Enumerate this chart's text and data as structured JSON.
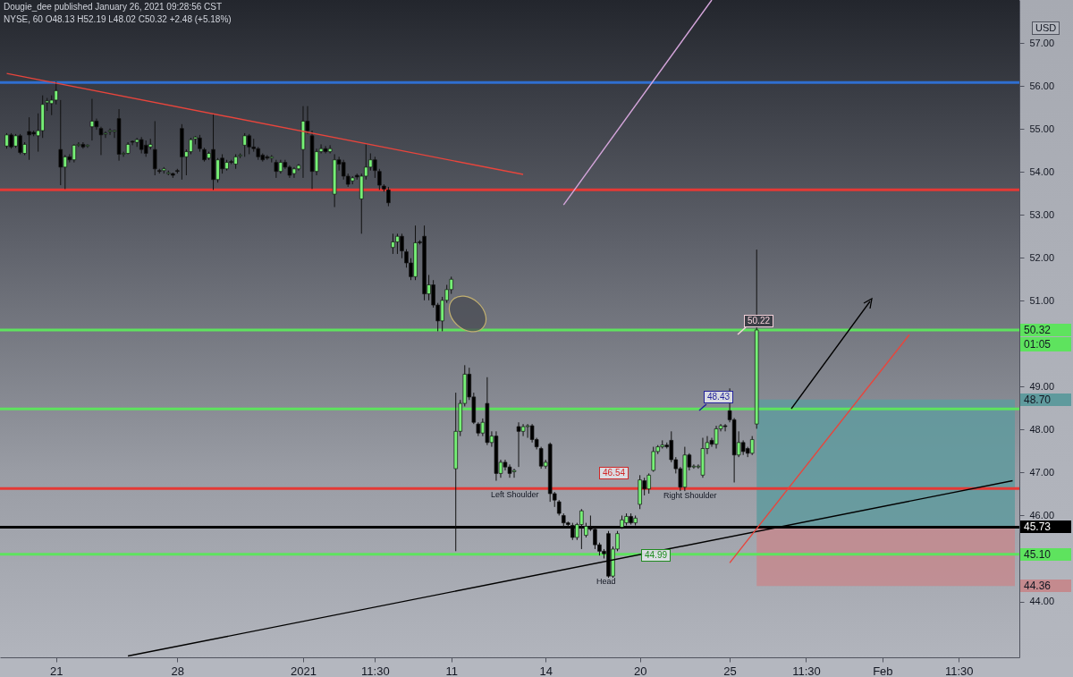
{
  "chart_data": {
    "type": "candlestick",
    "title": "Dougie_dee published January 26, 2021 09:28:56 CST",
    "subtitle": "NYSE, 60  O48.13 H52.19 L48.02 C50.32 +2.48 (+5.18%)",
    "ylabel": "USD",
    "categories": [
      null,
      null,
      null,
      null,
      null,
      null,
      null,
      null,
      null,
      null,
      null,
      "21",
      null,
      null,
      null,
      null,
      null,
      null,
      null,
      null,
      null,
      null,
      null,
      null,
      null,
      null,
      null,
      null,
      null,
      null,
      null,
      null,
      null,
      null,
      null,
      null,
      null,
      null,
      "28",
      null,
      null,
      null,
      null,
      null,
      null,
      null,
      null,
      null,
      null,
      null,
      null,
      null,
      null,
      null,
      null,
      null,
      null,
      null,
      null,
      null,
      null,
      null,
      null,
      null,
      null,
      null,
      "2021",
      null,
      null,
      null,
      null,
      null,
      null,
      null,
      null,
      null,
      null,
      null,
      null,
      null,
      null,
      null,
      "11:30",
      null,
      null,
      null,
      null,
      null,
      null,
      null,
      null,
      null,
      null,
      null,
      null,
      null,
      null,
      null,
      null,
      "11",
      null,
      null,
      null,
      null,
      null,
      null,
      null,
      null,
      null,
      null,
      null,
      null,
      null,
      null,
      null,
      null,
      null,
      null,
      null,
      null,
      "14",
      null,
      null,
      null,
      null,
      null,
      null,
      null,
      null,
      null,
      null,
      null,
      null,
      null,
      null,
      null,
      null,
      null,
      null,
      null,
      null,
      "20",
      null,
      null,
      null,
      null,
      null,
      null,
      null,
      null,
      null,
      null,
      null,
      null,
      null,
      null,
      null,
      null,
      null,
      null,
      null,
      "25",
      null,
      null,
      null,
      null,
      null,
      null,
      null,
      null,
      null,
      null,
      null,
      null,
      null,
      null,
      null,
      null,
      "11:30",
      null,
      null,
      null,
      null,
      null,
      null,
      null,
      null,
      null,
      null,
      null,
      null,
      null,
      null,
      null,
      null,
      "Feb",
      null,
      null,
      null,
      null,
      null,
      null,
      null,
      null,
      null,
      null,
      null,
      null,
      null,
      null,
      null,
      null,
      "11:30",
      null,
      null,
      null,
      null,
      null,
      null,
      null,
      null,
      null,
      null,
      null,
      null
    ],
    "ylim": [
      42.7,
      58.0
    ],
    "yticks": [
      {
        "value": 44,
        "label": "44.00"
      },
      {
        "value": 46,
        "label": "46.00"
      },
      {
        "value": 47,
        "label": "47.00"
      },
      {
        "value": 48,
        "label": "48.00"
      },
      {
        "value": 49,
        "label": "49.00"
      },
      {
        "value": 51,
        "label": "51.00"
      },
      {
        "value": 52,
        "label": "52.00"
      },
      {
        "value": 53,
        "label": "53.00"
      },
      {
        "value": 54,
        "label": "54.00"
      },
      {
        "value": 55,
        "label": "55.00"
      },
      {
        "value": 56,
        "label": "56.00"
      },
      {
        "value": 57,
        "label": "57.00"
      }
    ],
    "ohlc": [
      [
        54.6,
        54.9,
        54.54,
        54.86
      ],
      [
        54.86,
        54.9,
        54.54,
        54.58
      ],
      [
        54.6,
        54.88,
        54.56,
        54.84
      ],
      [
        54.84,
        54.88,
        54.41,
        54.45
      ],
      [
        54.43,
        54.69,
        54.39,
        54.64
      ],
      [
        54.94,
        55.27,
        54.28,
        54.86
      ],
      [
        54.92,
        54.96,
        54.83,
        54.88
      ],
      [
        54.84,
        55.36,
        54.47,
        54.96
      ],
      [
        54.96,
        55.78,
        54.79,
        55.57
      ],
      [
        55.61,
        55.72,
        55.42,
        55.65
      ],
      [
        55.59,
        55.78,
        55.32,
        55.67
      ],
      [
        55.67,
        56.1,
        55.57,
        55.89
      ],
      [
        54.52,
        55.67,
        53.69,
        54.11
      ],
      [
        54.11,
        54.39,
        53.6,
        54.35
      ],
      [
        54.35,
        54.41,
        54.22,
        54.28
      ],
      [
        54.28,
        54.64,
        54.22,
        54.62
      ],
      [
        54.62,
        54.69,
        54.58,
        54.64
      ],
      [
        54.64,
        54.69,
        54.54,
        54.58
      ],
      [
        54.6,
        54.64,
        54.56,
        54.62
      ],
      [
        55.05,
        55.7,
        54.73,
        55.18
      ],
      [
        55.18,
        55.24,
        54.98,
        55.05
      ],
      [
        55.01,
        55.05,
        54.39,
        54.86
      ],
      [
        54.88,
        54.94,
        54.79,
        54.9
      ],
      [
        54.94,
        55.01,
        54.86,
        54.96
      ],
      [
        54.94,
        54.98,
        54.79,
        54.96
      ],
      [
        55.24,
        55.46,
        54.26,
        54.41
      ],
      [
        54.41,
        54.47,
        54.35,
        54.43
      ],
      [
        54.43,
        54.69,
        54.41,
        54.64
      ],
      [
        54.71,
        54.73,
        54.62,
        54.69
      ],
      [
        54.69,
        54.79,
        54.58,
        54.75
      ],
      [
        54.75,
        54.81,
        54.43,
        54.52
      ],
      [
        54.62,
        54.73,
        54.35,
        54.43
      ],
      [
        54.58,
        54.77,
        54.52,
        54.64
      ],
      [
        54.52,
        55.18,
        53.92,
        54.07
      ],
      [
        54.03,
        54.07,
        53.96,
        54.01
      ],
      [
        54.03,
        54.11,
        53.96,
        54.07
      ],
      [
        53.96,
        54.03,
        53.92,
        53.98
      ],
      [
        53.96,
        53.98,
        53.86,
        53.92
      ],
      [
        54.03,
        54.07,
        53.96,
        54.01
      ],
      [
        55.01,
        55.11,
        53.82,
        54.35
      ],
      [
        54.35,
        54.52,
        53.92,
        54.47
      ],
      [
        54.47,
        54.79,
        54.41,
        54.75
      ],
      [
        54.77,
        54.83,
        54.64,
        54.81
      ],
      [
        54.79,
        54.86,
        54.47,
        54.54
      ],
      [
        54.52,
        54.56,
        54.24,
        54.28
      ],
      [
        54.32,
        54.47,
        54.28,
        54.43
      ],
      [
        54.52,
        55.36,
        53.58,
        53.82
      ],
      [
        53.82,
        54.32,
        53.75,
        54.28
      ],
      [
        54.32,
        54.41,
        53.96,
        54.07
      ],
      [
        54.07,
        54.28,
        54.03,
        54.22
      ],
      [
        54.24,
        54.28,
        54.18,
        54.22
      ],
      [
        54.18,
        54.41,
        54.07,
        54.35
      ],
      [
        54.37,
        54.43,
        54.32,
        54.39
      ],
      [
        54.62,
        54.9,
        54.35,
        54.84
      ],
      [
        54.84,
        54.88,
        54.41,
        54.58
      ],
      [
        54.58,
        54.77,
        54.47,
        54.54
      ],
      [
        54.54,
        54.58,
        54.28,
        54.35
      ],
      [
        54.39,
        54.43,
        54.24,
        54.28
      ],
      [
        54.35,
        54.39,
        54.28,
        54.32
      ],
      [
        54.32,
        54.39,
        54.22,
        54.35
      ],
      [
        54.22,
        54.28,
        53.86,
        54.01
      ],
      [
        54.01,
        54.28,
        53.96,
        54.22
      ],
      [
        54.22,
        54.28,
        54.07,
        54.11
      ],
      [
        54.11,
        54.15,
        53.86,
        53.92
      ],
      [
        53.96,
        54.11,
        53.86,
        54.07
      ],
      [
        54.07,
        54.18,
        54.03,
        54.15
      ],
      [
        54.52,
        55.53,
        53.86,
        55.18
      ],
      [
        55.18,
        55.53,
        54.88,
        54.96
      ],
      [
        54.84,
        54.96,
        53.6,
        54.01
      ],
      [
        54.01,
        54.54,
        53.92,
        54.47
      ],
      [
        54.47,
        54.64,
        54.43,
        54.54
      ],
      [
        54.54,
        54.6,
        54.43,
        54.47
      ],
      [
        54.47,
        54.62,
        54.43,
        54.54
      ],
      [
        53.48,
        54.41,
        53.18,
        54.28
      ],
      [
        54.28,
        54.35,
        54.03,
        54.18
      ],
      [
        54.22,
        54.28,
        53.82,
        53.9
      ],
      [
        53.9,
        53.96,
        53.65,
        53.71
      ],
      [
        53.79,
        53.9,
        53.71,
        53.86
      ],
      [
        53.92,
        53.96,
        53.82,
        53.88
      ],
      [
        53.37,
        53.96,
        52.56,
        53.9
      ],
      [
        53.9,
        54.64,
        53.82,
        54.11
      ],
      [
        54.11,
        54.43,
        54.03,
        54.28
      ],
      [
        54.28,
        54.35,
        53.86,
        54.03
      ],
      [
        54.01,
        54.07,
        53.58,
        53.69
      ],
      [
        53.67,
        53.71,
        53.54,
        53.6
      ],
      [
        53.58,
        53.65,
        53.2,
        53.28
      ],
      [
        52.24,
        52.56,
        52.09,
        52.37
      ],
      [
        52.37,
        52.56,
        52.09,
        52.5
      ],
      [
        52.5,
        52.56,
        51.99,
        52.16
      ],
      [
        52.14,
        52.2,
        51.77,
        51.88
      ],
      [
        51.88,
        51.99,
        51.48,
        51.56
      ],
      [
        51.56,
        52.75,
        51.48,
        52.35
      ],
      [
        52.37,
        52.41,
        52.31,
        52.35
      ],
      [
        52.5,
        52.75,
        51.01,
        51.16
      ],
      [
        51.16,
        51.6,
        51.01,
        51.37
      ],
      [
        51.37,
        51.48,
        50.84,
        50.9
      ],
      [
        50.9,
        50.95,
        50.29,
        50.53
      ],
      [
        50.53,
        51.09,
        50.29,
        51.01
      ],
      [
        51.01,
        51.37,
        50.95,
        51.26
      ],
      [
        51.26,
        51.56,
        51.16,
        51.5
      ],
      [
        47.09,
        48.86,
        45.17,
        47.96
      ],
      [
        47.96,
        48.69,
        47.85,
        48.61
      ],
      [
        48.61,
        49.5,
        48.54,
        49.29
      ],
      [
        49.29,
        49.44,
        48.69,
        48.76
      ],
      [
        48.76,
        48.86,
        48.13,
        48.17
      ],
      [
        48.13,
        48.17,
        47.85,
        47.92
      ],
      [
        47.92,
        48.26,
        47.85,
        48.17
      ],
      [
        48.61,
        49.22,
        47.64,
        47.7
      ],
      [
        47.7,
        47.96,
        47.6,
        47.85
      ],
      [
        47.85,
        47.96,
        46.81,
        46.98
      ],
      [
        46.98,
        47.3,
        46.88,
        47.24
      ],
      [
        47.24,
        47.3,
        47.05,
        47.13
      ],
      [
        47.13,
        47.19,
        46.88,
        46.98
      ],
      [
        47.02,
        47.09,
        46.88,
        47.05
      ],
      [
        48.07,
        48.17,
        47.13,
        47.96
      ],
      [
        47.96,
        48.13,
        47.85,
        48.07
      ],
      [
        48.07,
        48.13,
        47.81,
        48.09
      ],
      [
        48.09,
        48.13,
        47.7,
        47.77
      ],
      [
        47.77,
        47.81,
        47.54,
        47.6
      ],
      [
        47.56,
        47.6,
        47.09,
        47.15
      ],
      [
        47.15,
        47.3,
        47.09,
        47.24
      ],
      [
        47.66,
        47.7,
        46.32,
        46.51
      ],
      [
        46.51,
        46.55,
        46.2,
        46.36
      ],
      [
        46.32,
        46.36,
        46.0,
        46.05
      ],
      [
        46.0,
        46.05,
        45.73,
        45.83
      ],
      [
        45.83,
        45.86,
        45.73,
        45.79
      ],
      [
        45.77,
        45.83,
        45.43,
        45.49
      ],
      [
        45.49,
        45.83,
        45.43,
        45.79
      ],
      [
        45.79,
        46.15,
        45.22,
        46.11
      ],
      [
        45.54,
        45.83,
        45.49,
        45.75
      ],
      [
        45.73,
        46.0,
        45.64,
        45.68
      ],
      [
        45.68,
        45.73,
        45.22,
        45.32
      ],
      [
        45.32,
        45.37,
        45.07,
        45.17
      ],
      [
        45.17,
        45.22,
        45.0,
        45.11
      ],
      [
        45.58,
        45.64,
        44.55,
        44.59
      ],
      [
        44.59,
        45.28,
        44.55,
        45.22
      ],
      [
        45.22,
        45.64,
        45.17,
        45.58
      ],
      [
        45.73,
        46.0,
        45.69,
        45.9
      ],
      [
        45.83,
        46.05,
        45.77,
        45.98
      ],
      [
        45.98,
        46.05,
        45.79,
        45.83
      ],
      [
        45.83,
        46.0,
        45.77,
        45.94
      ],
      [
        46.26,
        46.94,
        46.15,
        46.83
      ],
      [
        46.81,
        46.88,
        46.47,
        46.62
      ],
      [
        46.62,
        46.98,
        46.51,
        46.94
      ],
      [
        47.05,
        47.6,
        47.02,
        47.49
      ],
      [
        47.49,
        47.64,
        47.43,
        47.6
      ],
      [
        47.6,
        47.75,
        47.56,
        47.64
      ],
      [
        47.64,
        47.7,
        47.56,
        47.6
      ],
      [
        47.75,
        47.96,
        47.24,
        47.3
      ],
      [
        47.3,
        47.36,
        46.98,
        47.09
      ],
      [
        47.09,
        47.13,
        46.57,
        46.66
      ],
      [
        46.66,
        47.6,
        46.57,
        47.41
      ],
      [
        47.41,
        47.45,
        47.05,
        47.13
      ],
      [
        47.13,
        47.19,
        47.09,
        47.15
      ],
      [
        47.13,
        47.19,
        47.09,
        47.15
      ],
      [
        46.94,
        47.81,
        46.88,
        47.56
      ],
      [
        47.56,
        47.85,
        47.43,
        47.7
      ],
      [
        47.75,
        47.81,
        47.6,
        47.66
      ],
      [
        47.66,
        48.09,
        47.56,
        48.02
      ],
      [
        48.02,
        48.13,
        47.96,
        48.09
      ],
      [
        48.09,
        48.13,
        47.96,
        48.07
      ],
      [
        48.44,
        48.96,
        48.17,
        48.23
      ],
      [
        48.23,
        48.27,
        46.77,
        47.41
      ],
      [
        47.41,
        47.96,
        47.36,
        47.7
      ],
      [
        47.7,
        47.75,
        47.41,
        47.49
      ],
      [
        47.56,
        47.6,
        47.36,
        47.45
      ],
      [
        47.45,
        47.85,
        47.41,
        47.77
      ],
      [
        48.13,
        52.19,
        48.02,
        50.32
      ],
      null,
      null,
      null,
      null,
      null,
      null,
      null,
      null,
      null,
      null,
      null,
      null,
      null,
      null,
      null,
      null,
      null,
      null,
      null,
      null,
      null,
      null,
      null,
      null,
      null,
      null,
      null,
      null,
      null,
      null,
      null,
      null,
      null,
      null,
      null,
      null,
      null,
      null,
      null,
      null,
      null,
      null,
      null,
      null,
      null,
      null,
      null,
      null,
      null,
      null,
      null,
      null,
      null,
      null,
      null,
      null,
      null
    ],
    "colors": [
      "#76f076",
      "#000000",
      "#76f076",
      "#000000",
      "#76f076",
      "#000000",
      "#000000",
      "#76f076",
      "#76f076",
      "#76f076",
      "#76f076",
      "#76f076",
      "#000000",
      "#76f076",
      "#000000",
      "#76f076",
      "#76f076",
      "#000000",
      "#76f076",
      "#76f076",
      "#000000",
      "#000000",
      "#76f076",
      "#76f076",
      "#76f076",
      "#000000",
      "#76f076",
      "#76f076",
      "#000000",
      "#76f076",
      "#000000",
      "#000000",
      "#76f076",
      "#000000",
      "#000000",
      "#76f076",
      "#76f076",
      "#000000",
      "#000000",
      "#000000",
      "#76f076",
      "#76f076",
      "#76f076",
      "#000000",
      "#000000",
      "#76f076",
      "#000000",
      "#76f076",
      "#000000",
      "#76f076",
      "#000000",
      "#76f076",
      "#76f076",
      "#76f076",
      "#000000",
      "#000000",
      "#000000",
      "#000000",
      "#000000",
      "#76f076",
      "#000000",
      "#76f076",
      "#000000",
      "#000000",
      "#76f076",
      "#76f076",
      "#76f076",
      "#000000",
      "#000000",
      "#76f076",
      "#76f076",
      "#000000",
      "#76f076",
      "#76f076",
      "#000000",
      "#000000",
      "#000000",
      "#76f076",
      "#000000",
      "#76f076",
      "#76f076",
      "#76f076",
      "#000000",
      "#000000",
      "#000000",
      "#000000",
      "#76f076",
      "#76f076",
      "#000000",
      "#000000",
      "#000000",
      "#76f076",
      "#000000",
      "#000000",
      "#76f076",
      "#000000",
      "#000000",
      "#76f076",
      "#76f076",
      "#76f076",
      "#76f076",
      "#76f076",
      "#76f076",
      "#000000",
      "#000000",
      "#000000",
      "#76f076",
      "#000000",
      "#76f076",
      "#000000",
      "#76f076",
      "#000000",
      "#000000",
      "#76f076",
      "#000000",
      "#76f076",
      "#76f076",
      "#000000",
      "#000000",
      "#000000",
      "#76f076",
      "#000000",
      "#000000",
      "#000000",
      "#000000",
      "#000000",
      "#000000",
      "#76f076",
      "#76f076",
      "#76f076",
      "#000000",
      "#000000",
      "#000000",
      "#000000",
      "#000000",
      "#76f076",
      "#76f076",
      "#76f076",
      "#76f076",
      "#000000",
      "#76f076",
      "#76f076",
      "#000000",
      "#76f076",
      "#76f076",
      "#76f076",
      "#76f076",
      "#000000",
      "#000000",
      "#000000",
      "#000000",
      "#76f076",
      "#000000",
      "#76f076",
      "#76f076",
      "#76f076",
      "#76f076",
      "#000000",
      "#76f076",
      "#76f076",
      "#000000",
      "#000000",
      "#000000",
      "#76f076",
      "#000000",
      "#000000",
      "#76f076",
      "#76f076",
      null,
      null,
      null,
      null,
      null,
      null,
      null,
      null,
      null,
      null,
      null,
      null,
      null,
      null,
      null,
      null,
      null,
      null,
      null,
      null,
      null,
      null,
      null,
      null,
      null,
      null,
      null,
      null,
      null,
      null,
      null,
      null,
      null,
      null,
      null,
      null,
      null,
      null,
      null,
      null,
      null,
      null,
      null,
      null,
      null,
      null,
      null,
      null,
      null,
      null,
      null,
      null,
      null,
      null,
      null,
      null,
      null
    ],
    "series": [
      {
        "type": "line",
        "color": "#e8453c",
        "values": [
          56.29,
          null,
          null,
          null,
          null,
          null,
          null,
          null,
          null,
          null,
          null,
          null,
          null,
          null,
          null,
          null,
          null,
          null,
          null,
          null,
          null,
          null,
          null,
          null,
          null,
          null,
          null,
          null,
          null,
          null,
          null,
          null,
          null,
          null,
          null,
          null,
          null,
          null,
          null,
          null,
          null,
          null,
          null,
          null,
          null,
          null,
          null,
          null,
          null,
          null,
          null,
          null,
          null,
          null,
          null,
          null,
          null,
          null,
          null,
          null,
          null,
          null,
          null,
          null,
          null,
          null,
          null,
          null,
          null,
          null,
          null,
          null,
          null,
          null,
          null,
          null,
          null,
          null,
          null,
          null,
          null,
          null,
          null,
          null,
          null,
          null,
          null,
          null,
          null,
          null,
          null,
          null,
          null,
          null,
          null,
          null,
          null,
          null,
          null,
          null,
          null,
          null,
          null,
          null,
          null,
          null,
          null,
          null,
          null,
          null,
          null,
          null,
          null,
          null,
          null,
          53.94,
          null,
          null,
          null,
          null,
          null,
          null,
          null,
          null,
          null,
          null,
          null,
          null,
          null,
          null,
          null,
          null,
          null,
          null,
          null,
          null,
          null,
          null,
          null,
          null,
          null,
          null,
          null,
          null,
          null,
          null,
          null,
          null,
          null,
          null,
          null,
          null,
          null,
          null,
          null,
          null,
          null,
          null,
          null,
          null,
          null,
          null,
          null,
          null,
          null,
          null,
          null,
          null,
          null,
          null,
          null,
          null,
          null,
          null,
          null,
          null,
          null,
          null,
          null,
          null,
          null,
          null,
          null,
          null,
          null,
          null,
          null,
          null,
          null,
          null,
          null,
          null,
          null,
          null,
          null,
          null,
          null,
          null,
          null,
          null,
          null,
          null,
          null,
          null,
          null,
          null,
          null,
          null,
          null,
          null,
          null,
          null,
          null,
          null,
          null,
          null,
          null,
          null,
          null,
          null,
          null,
          null,
          null,
          null,
          null
        ]
      },
      {
        "type": "line",
        "color": "#d6a6dc",
        "values": [
          null,
          null,
          null,
          null,
          null,
          null,
          null,
          null,
          null,
          null,
          null,
          null,
          null,
          null,
          null,
          null,
          null,
          null,
          null,
          null,
          null,
          null,
          null,
          null,
          null,
          null,
          null,
          null,
          null,
          null,
          null,
          null,
          null,
          null,
          null,
          null,
          null,
          null,
          null,
          null,
          null,
          null,
          null,
          null,
          null,
          null,
          null,
          null,
          null,
          null,
          null,
          null,
          null,
          null,
          null,
          null,
          null,
          null,
          null,
          null,
          null,
          null,
          null,
          null,
          null,
          null,
          null,
          null,
          null,
          null,
          null,
          null,
          null,
          null,
          null,
          null,
          null,
          null,
          null,
          null,
          null,
          null,
          null,
          null,
          null,
          null,
          null,
          null,
          null,
          null,
          null,
          null,
          null,
          null,
          null,
          null,
          null,
          null,
          null,
          null,
          null,
          null,
          null,
          null,
          null,
          null,
          null,
          null,
          null,
          null,
          null,
          null,
          null,
          null,
          null,
          null,
          null,
          null,
          null,
          null,
          null,
          null,
          null,
          null,
          53.23,
          null,
          null,
          null,
          null,
          null,
          null,
          null,
          null,
          null,
          null,
          null,
          null,
          null,
          null,
          null,
          null,
          null,
          null,
          null,
          null,
          null,
          null,
          null,
          null,
          null,
          null,
          null,
          null,
          null,
          null,
          null,
          null,
          58.0,
          null,
          null,
          null,
          null,
          null,
          null,
          null,
          null,
          null,
          null,
          null,
          null,
          null,
          null,
          null,
          null,
          null,
          null,
          null,
          null,
          null,
          null,
          null,
          null,
          null,
          null,
          null,
          null,
          null,
          null,
          null,
          null,
          null,
          null,
          null,
          null,
          null,
          null,
          null,
          null,
          null,
          null,
          null,
          null,
          null,
          null,
          null,
          null,
          null,
          null,
          null,
          null,
          null,
          null,
          null,
          null,
          null,
          null,
          null,
          null,
          null,
          null,
          null,
          null,
          null,
          null,
          null
        ]
      },
      {
        "type": "line",
        "color": "#000000",
        "values": [
          null,
          null,
          null,
          null,
          null,
          null,
          null,
          null,
          null,
          null,
          null,
          null,
          null,
          null,
          null,
          null,
          null,
          null,
          null,
          null,
          null,
          null,
          null,
          null,
          null,
          null,
          null,
          42.73,
          null,
          null,
          null,
          null,
          null,
          null,
          null,
          null,
          null,
          null,
          null,
          null,
          null,
          null,
          null,
          null,
          null,
          null,
          null,
          null,
          null,
          null,
          null,
          null,
          null,
          null,
          null,
          null,
          null,
          null,
          null,
          null,
          null,
          null,
          null,
          null,
          null,
          null,
          null,
          null,
          null,
          null,
          null,
          null,
          null,
          null,
          null,
          null,
          null,
          null,
          null,
          null,
          null,
          null,
          null,
          null,
          null,
          null,
          null,
          null,
          null,
          null,
          null,
          null,
          null,
          null,
          null,
          null,
          null,
          null,
          null,
          null,
          null,
          null,
          null,
          null,
          null,
          null,
          null,
          null,
          null,
          null,
          null,
          null,
          null,
          null,
          null,
          null,
          null,
          null,
          null,
          null,
          null,
          null,
          null,
          null,
          null,
          null,
          null,
          null,
          null,
          null,
          null,
          null,
          null,
          null,
          null,
          null,
          null,
          null,
          null,
          null,
          null,
          null,
          null,
          null,
          null,
          null,
          null,
          null,
          null,
          null,
          null,
          null,
          null,
          null,
          null,
          null,
          null,
          null,
          null,
          null,
          null,
          null,
          null,
          null,
          null,
          null,
          null,
          null,
          null,
          null,
          null,
          null,
          null,
          null,
          null,
          null,
          null,
          null,
          null,
          null,
          null,
          null,
          null,
          null,
          null,
          null,
          null,
          null,
          null,
          null,
          null,
          null,
          null,
          null,
          null,
          null,
          null,
          null,
          null,
          null,
          null,
          null,
          null,
          null,
          null,
          null,
          null,
          null,
          null,
          null,
          null,
          null,
          null,
          null,
          null,
          null,
          null,
          null,
          null,
          null,
          null,
          null,
          null,
          null,
          46.81
        ]
      },
      {
        "type": "line",
        "color": "#e8453c",
        "values": [
          null,
          null,
          null,
          null,
          null,
          null,
          null,
          null,
          null,
          null,
          null,
          null,
          null,
          null,
          null,
          null,
          null,
          null,
          null,
          null,
          null,
          null,
          null,
          null,
          null,
          null,
          null,
          null,
          null,
          null,
          null,
          null,
          null,
          null,
          null,
          null,
          null,
          null,
          null,
          null,
          null,
          null,
          null,
          null,
          null,
          null,
          null,
          null,
          null,
          null,
          null,
          null,
          null,
          null,
          null,
          null,
          null,
          null,
          null,
          null,
          null,
          null,
          null,
          null,
          null,
          null,
          null,
          null,
          null,
          null,
          null,
          null,
          null,
          null,
          null,
          null,
          null,
          null,
          null,
          null,
          null,
          null,
          null,
          null,
          null,
          null,
          null,
          null,
          null,
          null,
          null,
          null,
          null,
          null,
          null,
          null,
          null,
          null,
          null,
          null,
          null,
          null,
          null,
          null,
          null,
          null,
          null,
          null,
          null,
          null,
          null,
          null,
          null,
          null,
          null,
          null,
          null,
          null,
          null,
          null,
          null,
          null,
          null,
          null,
          null,
          null,
          null,
          null,
          null,
          null,
          null,
          null,
          null,
          null,
          null,
          null,
          null,
          null,
          null,
          null,
          null,
          null,
          null,
          null,
          null,
          null,
          null,
          null,
          null,
          null,
          null,
          null,
          null,
          null,
          null,
          null,
          null,
          null,
          null,
          null,
          null,
          44.9,
          null,
          null,
          null,
          null,
          null,
          null,
          null,
          null,
          null,
          null,
          null,
          null,
          null,
          null,
          null,
          null,
          null,
          null,
          null,
          null,
          null,
          null,
          null,
          null,
          null,
          null,
          null,
          null,
          null,
          null,
          null,
          null,
          null,
          null,
          null,
          null,
          null,
          null,
          null,
          50.21,
          null,
          null,
          null,
          null,
          null,
          null,
          null,
          null,
          null,
          null,
          null,
          null,
          null,
          null,
          null,
          null,
          null,
          null,
          null,
          null,
          null,
          null,
          null
        ]
      }
    ],
    "ref_lines": [
      {
        "axis": "y",
        "value": 56.08,
        "color": "#2f6fd0"
      },
      {
        "axis": "y",
        "value": 53.58,
        "color": "#e53935"
      },
      {
        "axis": "y",
        "value": 50.32,
        "label": "50.32",
        "color": "#5ee35e"
      },
      {
        "axis": "y",
        "value": 48.48,
        "color": "#5ee35e"
      },
      {
        "axis": "y",
        "value": 46.63,
        "color": "#e53935"
      },
      {
        "axis": "y",
        "value": 45.73,
        "label": "45.73",
        "color": "#000000"
      },
      {
        "axis": "y",
        "value": 45.1,
        "label": "45.10",
        "color": "#5ee35e"
      }
    ],
    "bands": [
      {
        "axis": "y",
        "from": 45.73,
        "to": 48.7,
        "label": "48.70",
        "color": "#5f9a9d"
      },
      {
        "axis": "y",
        "from": 45.73,
        "to": 44.36,
        "label": "44.36",
        "color": "#c48a8e"
      }
    ],
    "annotations": [
      "Left Shoulder",
      "Head",
      "Right Shoulder",
      "48.43",
      "50.22",
      "46.54",
      "44.99",
      "01:05"
    ]
  }
}
